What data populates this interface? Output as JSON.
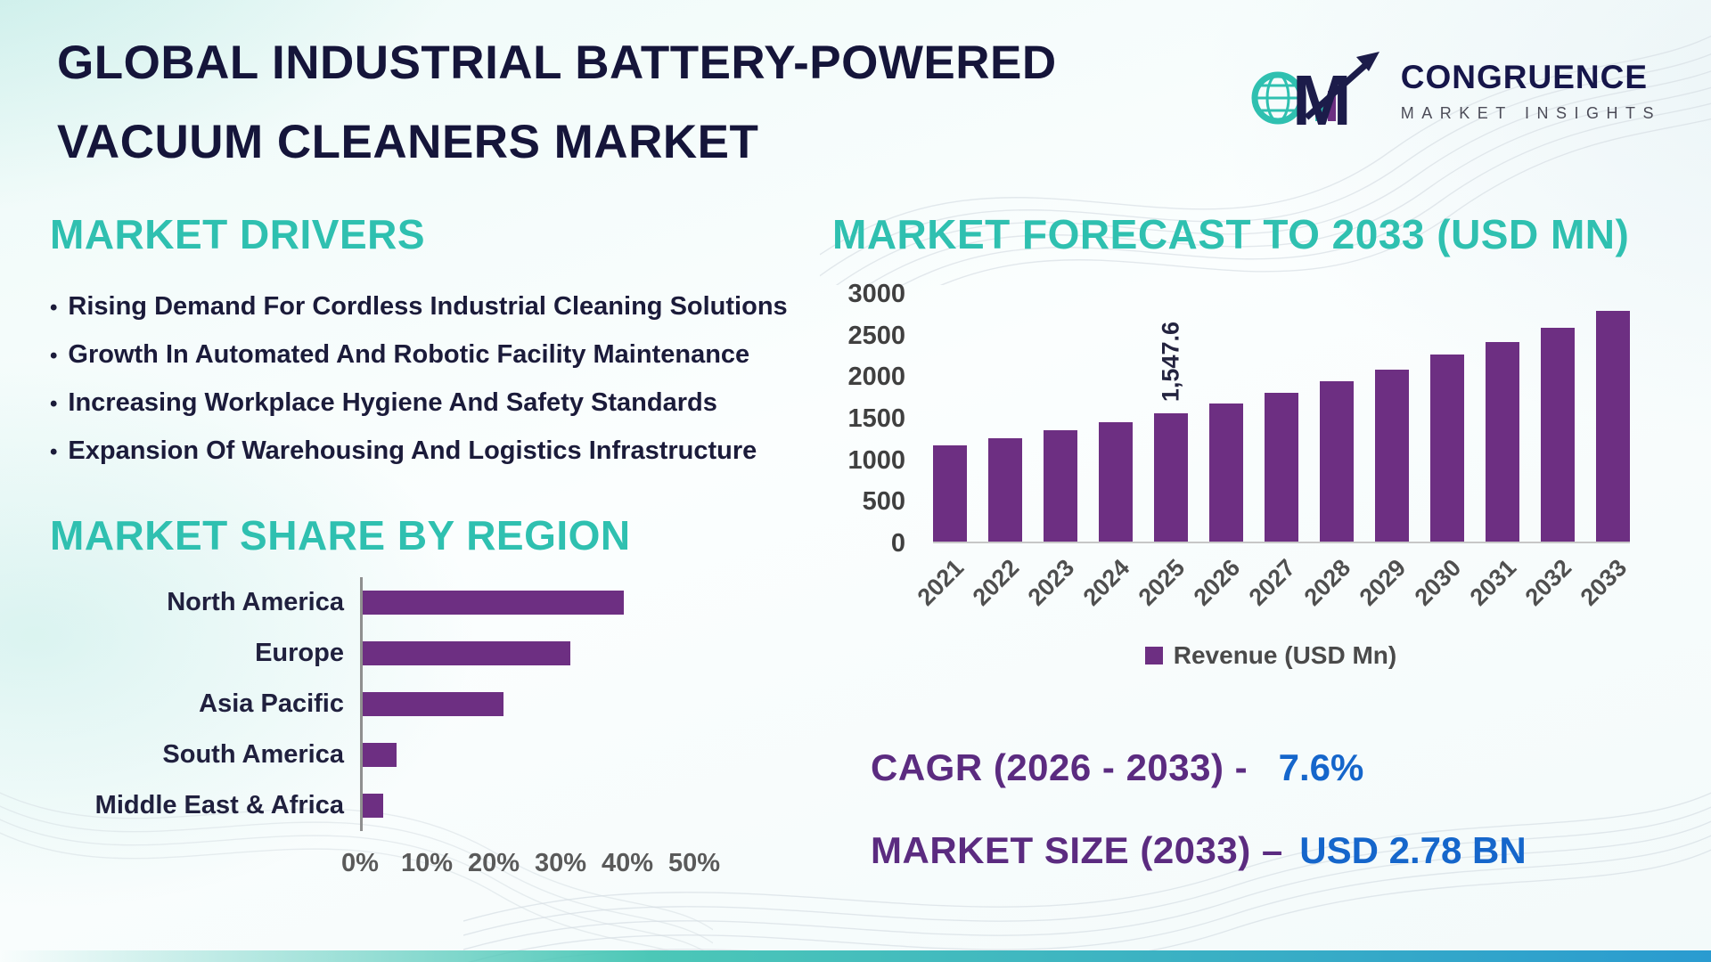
{
  "header": {
    "title_line1": "GLOBAL INDUSTRIAL BATTERY-POWERED",
    "title_line2": "VACUUM CLEANERS MARKET",
    "logo": {
      "monogram": "M",
      "brand_name": "CONGRUENCE",
      "brand_tagline": "MARKET INSIGHTS"
    }
  },
  "drivers": {
    "heading": "MARKET DRIVERS",
    "bullet": "•",
    "items": [
      "Rising Demand For Cordless Industrial Cleaning Solutions",
      "Growth In Automated And Robotic Facility Maintenance",
      "Increasing Workplace Hygiene And Safety Standards",
      "Expansion Of Warehousing And Logistics Infrastructure"
    ]
  },
  "region_section": {
    "heading": "MARKET SHARE BY REGION"
  },
  "forecast_section": {
    "heading": "MARKET FORECAST TO 2033 (USD MN)",
    "legend_label": "Revenue (USD Mn)"
  },
  "stats": {
    "cagr_label": "CAGR (2026 - 2033) -",
    "cagr_value": "7.6%",
    "market_size_label": "MARKET SIZE (2033) –",
    "market_size_value": "USD 2.78 BN"
  },
  "colors": {
    "bar_purple": "#6d2f82",
    "heading_teal": "#2fc0b0",
    "title_navy": "#15153a",
    "accent_blue": "#1566cb",
    "stat_purple": "#5b2b80"
  },
  "chart_data": [
    {
      "type": "bar",
      "orientation": "vertical",
      "title": "MARKET FORECAST TO 2033 (USD MN)",
      "ylabel": "Revenue (USD Mn)",
      "categories": [
        "2021",
        "2022",
        "2023",
        "2024",
        "2025",
        "2026",
        "2027",
        "2028",
        "2029",
        "2030",
        "2031",
        "2032",
        "2033"
      ],
      "values": [
        1160,
        1240,
        1340,
        1440,
        1547.6,
        1665,
        1790,
        1925,
        2070,
        2250,
        2400,
        2570,
        2780
      ],
      "annotation": {
        "category": "2025",
        "label": "1,547.6"
      },
      "ylim": [
        0,
        3000
      ],
      "yticks": [
        0,
        500,
        1000,
        1500,
        2000,
        2500,
        3000
      ],
      "legend": [
        "Revenue (USD Mn)"
      ],
      "legend_position": "bottom",
      "grid": false
    },
    {
      "type": "bar",
      "orientation": "horizontal",
      "title": "MARKET SHARE BY REGION",
      "categories": [
        "North America",
        "Europe",
        "Asia Pacific",
        "South America",
        "Middle East & Africa"
      ],
      "values": [
        39,
        31,
        21,
        5,
        3
      ],
      "unit": "%",
      "xlim": [
        0,
        50
      ],
      "xtick_values": [
        0,
        10,
        20,
        30,
        40,
        50
      ],
      "xtick_labels": [
        "0%",
        "10%",
        "20%",
        "30%",
        "40%",
        "50%"
      ],
      "grid": false
    }
  ]
}
